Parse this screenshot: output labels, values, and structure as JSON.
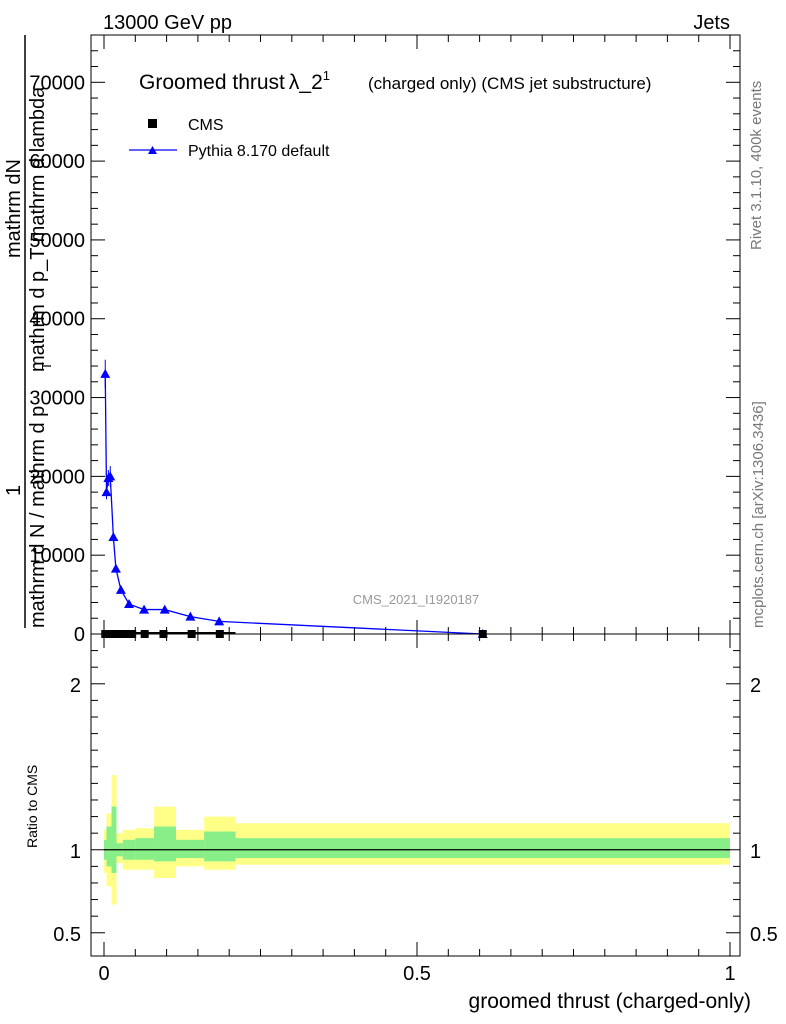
{
  "header": {
    "left": "13000 GeV pp",
    "right": "Jets",
    "side_top": "Rivet 3.1.10,  400k events",
    "side_bottom": "mcplots.cern.ch [arXiv:1306.3436]"
  },
  "chart_data": {
    "type": "line",
    "title_main": "Groomed thrust",
    "title_lambda": "λ_2",
    "title_sup": "1",
    "title_rest": "(charged only) (CMS jet substructure)",
    "ylabel_top": "mathrm dN",
    "ylabel_mid": "mathrm d p_T mathrm d lambda",
    "ylabel_den": "mathrm d N / mathrm d p",
    "ylabel_T": "T",
    "ylabel_one": "1",
    "ylabel_ratio": "Ratio to CMS",
    "xlabel": "groomed thrust (charged-only)",
    "watermark": "CMS_2021_I1920187",
    "legend": [
      {
        "name": "CMS",
        "color": "#000000",
        "marker": "square"
      },
      {
        "name": "Pythia 8.170 default",
        "color": "#0000ff",
        "marker": "triangle"
      }
    ],
    "xlim": [
      0,
      1
    ],
    "main_ylim": [
      0,
      76000
    ],
    "main_yticks": [
      {
        "v": 0,
        "label": "0"
      },
      {
        "v": 10000,
        "label": "10000"
      },
      {
        "v": 20000,
        "label": "20000"
      },
      {
        "v": 30000,
        "label": "30000"
      },
      {
        "v": 40000,
        "label": "40000"
      },
      {
        "v": 50000,
        "label": "50000"
      },
      {
        "v": 60000,
        "label": "60000"
      },
      {
        "v": 70000,
        "label": "70000"
      }
    ],
    "ratio_ylim": [
      0.36,
      2.3
    ],
    "ratio_yticks": [
      {
        "v": 0.5,
        "label": "0.5"
      },
      {
        "v": 1,
        "label": "1"
      },
      {
        "v": 2,
        "label": "2"
      }
    ],
    "xticks": [
      {
        "v": 0,
        "label": "0"
      },
      {
        "v": 0.5,
        "label": "0.5"
      },
      {
        "v": 1,
        "label": "1"
      }
    ],
    "cms": {
      "x": [
        0.002,
        0.006,
        0.01,
        0.016,
        0.025,
        0.035,
        0.045,
        0.065,
        0.095,
        0.14,
        0.185,
        0.605
      ],
      "y": [
        0,
        0,
        0,
        0,
        0,
        0,
        0,
        0,
        0,
        0,
        0,
        0
      ]
    },
    "pythia": {
      "x": [
        0.002,
        0.004,
        0.007,
        0.01,
        0.015,
        0.019,
        0.027,
        0.04,
        0.064,
        0.097,
        0.138,
        0.184,
        0.605
      ],
      "y": [
        33000,
        18000,
        19800,
        20000,
        12300,
        8300,
        5600,
        3800,
        3100,
        3100,
        2200,
        1600,
        0
      ],
      "err": [
        1800,
        900,
        1000,
        1300,
        600,
        400,
        300,
        200,
        150,
        150,
        120,
        100,
        0
      ]
    },
    "ratio_bands": [
      {
        "x0": 0.0,
        "x1": 0.004,
        "y_lo": 0.86,
        "y_hi": 1.12,
        "g_lo": 0.94,
        "g_hi": 1.06
      },
      {
        "x0": 0.004,
        "x1": 0.012,
        "y_lo": 0.78,
        "y_hi": 1.22,
        "g_lo": 0.9,
        "g_hi": 1.14
      },
      {
        "x0": 0.012,
        "x1": 0.02,
        "y_lo": 0.67,
        "y_hi": 1.45,
        "g_lo": 0.86,
        "g_hi": 1.26
      },
      {
        "x0": 0.02,
        "x1": 0.03,
        "y_lo": 0.92,
        "y_hi": 1.1,
        "g_lo": 0.96,
        "g_hi": 1.04
      },
      {
        "x0": 0.03,
        "x1": 0.05,
        "y_lo": 0.88,
        "y_hi": 1.12,
        "g_lo": 0.94,
        "g_hi": 1.06
      },
      {
        "x0": 0.05,
        "x1": 0.08,
        "y_lo": 0.88,
        "y_hi": 1.13,
        "g_lo": 0.94,
        "g_hi": 1.07
      },
      {
        "x0": 0.08,
        "x1": 0.115,
        "y_lo": 0.83,
        "y_hi": 1.26,
        "g_lo": 0.93,
        "g_hi": 1.14
      },
      {
        "x0": 0.115,
        "x1": 0.16,
        "y_lo": 0.9,
        "y_hi": 1.12,
        "g_lo": 0.95,
        "g_hi": 1.06
      },
      {
        "x0": 0.16,
        "x1": 0.21,
        "y_lo": 0.88,
        "y_hi": 1.2,
        "g_lo": 0.93,
        "g_hi": 1.11
      },
      {
        "x0": 0.21,
        "x1": 1.0,
        "y_lo": 0.91,
        "y_hi": 1.16,
        "g_lo": 0.95,
        "g_hi": 1.07
      }
    ],
    "colors": {
      "band_yellow": "#ffff88",
      "band_green": "#88ee88",
      "mc": "#0000ff",
      "data": "#000000"
    }
  }
}
